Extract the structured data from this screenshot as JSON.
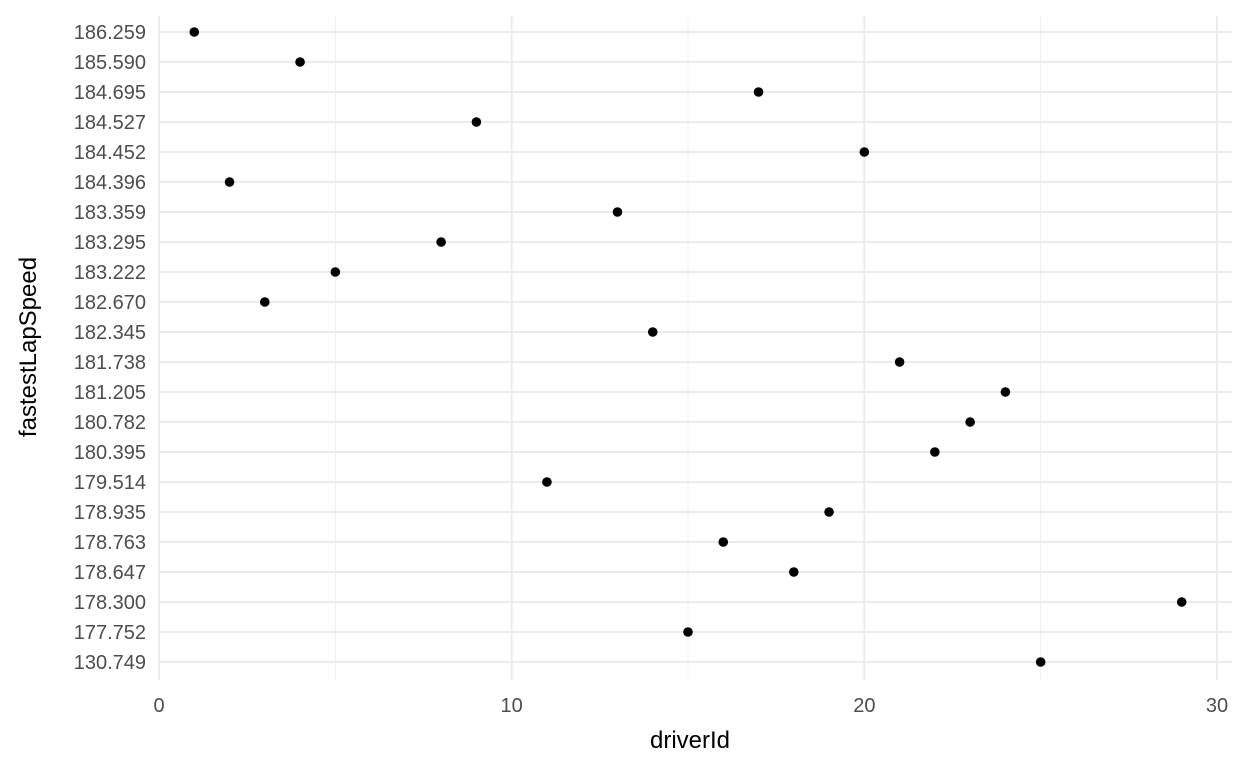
{
  "chart_data": {
    "type": "scatter",
    "title": "",
    "xlabel": "driverId",
    "ylabel": "fastestLapSpeed",
    "y_type": "categorical",
    "y_categories": [
      "130.749",
      "177.752",
      "178.300",
      "178.647",
      "178.763",
      "178.935",
      "179.514",
      "180.395",
      "180.782",
      "181.205",
      "181.738",
      "182.345",
      "182.670",
      "183.222",
      "183.295",
      "183.359",
      "184.396",
      "184.452",
      "184.527",
      "184.695",
      "185.590",
      "186.259"
    ],
    "xlim": [
      0,
      30
    ],
    "x_ticks": [
      0,
      10,
      20,
      30
    ],
    "x_minor_ticks": [
      5,
      15,
      25
    ],
    "grid": true,
    "legend": "none",
    "points": [
      {
        "x": 1,
        "y": "186.259"
      },
      {
        "x": 4,
        "y": "185.590"
      },
      {
        "x": 17,
        "y": "184.695"
      },
      {
        "x": 9,
        "y": "184.527"
      },
      {
        "x": 20,
        "y": "184.452"
      },
      {
        "x": 2,
        "y": "184.396"
      },
      {
        "x": 13,
        "y": "183.359"
      },
      {
        "x": 8,
        "y": "183.295"
      },
      {
        "x": 5,
        "y": "183.222"
      },
      {
        "x": 3,
        "y": "182.670"
      },
      {
        "x": 14,
        "y": "182.345"
      },
      {
        "x": 21,
        "y": "181.738"
      },
      {
        "x": 24,
        "y": "181.205"
      },
      {
        "x": 23,
        "y": "180.782"
      },
      {
        "x": 22,
        "y": "180.395"
      },
      {
        "x": 11,
        "y": "179.514"
      },
      {
        "x": 19,
        "y": "178.935"
      },
      {
        "x": 16,
        "y": "178.763"
      },
      {
        "x": 18,
        "y": "178.647"
      },
      {
        "x": 29,
        "y": "178.300"
      },
      {
        "x": 15,
        "y": "177.752"
      },
      {
        "x": 25,
        "y": "130.749"
      }
    ]
  },
  "colors": {
    "point": "#000000",
    "grid_major": "#ebebeb",
    "grid_minor": "#f2f2f2",
    "tick_text": "#4d4d4d",
    "background": "#ffffff"
  }
}
